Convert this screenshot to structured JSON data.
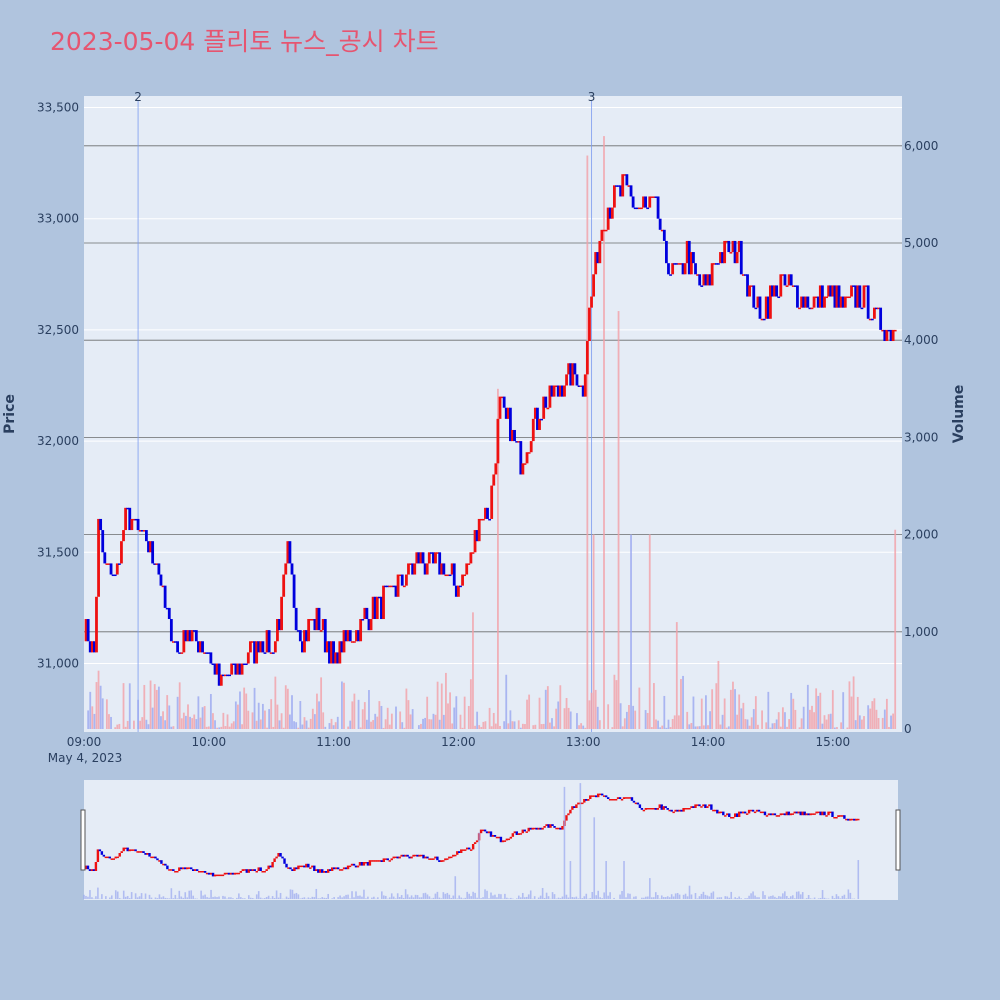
{
  "chart_data": {
    "type": "candlestick",
    "title": "2023-05-04 플리토 뉴스_공시 차트",
    "date_label": "May 4, 2023",
    "ylabel": "Price",
    "y2label": "Volume",
    "price_range": [
      30700,
      33550
    ],
    "volume_range": [
      0,
      6500
    ],
    "price_ticks": [
      31000,
      31500,
      32000,
      32500,
      33000,
      33500
    ],
    "price_tick_labels": [
      "31,000",
      "31,500",
      "32,000",
      "32,500",
      "33,000",
      "33,500"
    ],
    "volume_ticks": [
      0,
      1000,
      2000,
      3000,
      4000,
      5000,
      6000
    ],
    "volume_tick_labels": [
      "0",
      "1,000",
      "2,000",
      "3,000",
      "4,000",
      "5,000",
      "6,000"
    ],
    "time_ticks": [
      "09:00",
      "10:00",
      "11:00",
      "12:00",
      "13:00",
      "14:00",
      "15:00"
    ],
    "news_markers": [
      {
        "label": "2",
        "time": "09:26"
      },
      {
        "label": "3",
        "time": "13:04"
      }
    ],
    "anchors": [
      [
        "09:00",
        31150
      ],
      [
        "09:05",
        31050
      ],
      [
        "09:07",
        31600
      ],
      [
        "09:10",
        31450
      ],
      [
        "09:15",
        31400
      ],
      [
        "09:20",
        31650
      ],
      [
        "09:26",
        31600
      ],
      [
        "09:30",
        31550
      ],
      [
        "09:35",
        31450
      ],
      [
        "09:40",
        31200
      ],
      [
        "09:45",
        31050
      ],
      [
        "09:50",
        31150
      ],
      [
        "09:55",
        31100
      ],
      [
        "10:00",
        31050
      ],
      [
        "10:05",
        30900
      ],
      [
        "10:10",
        30950
      ],
      [
        "10:20",
        31050
      ],
      [
        "10:25",
        31100
      ],
      [
        "10:30",
        31050
      ],
      [
        "10:35",
        31250
      ],
      [
        "10:38",
        31500
      ],
      [
        "10:42",
        31200
      ],
      [
        "10:45",
        31100
      ],
      [
        "10:50",
        31200
      ],
      [
        "10:55",
        31150
      ],
      [
        "11:00",
        31000
      ],
      [
        "11:05",
        31100
      ],
      [
        "11:10",
        31150
      ],
      [
        "11:15",
        31200
      ],
      [
        "11:20",
        31250
      ],
      [
        "11:25",
        31300
      ],
      [
        "11:30",
        31350
      ],
      [
        "11:35",
        31400
      ],
      [
        "11:40",
        31450
      ],
      [
        "11:50",
        31450
      ],
      [
        "12:00",
        31350
      ],
      [
        "12:05",
        31450
      ],
      [
        "12:10",
        31650
      ],
      [
        "12:15",
        31700
      ],
      [
        "12:20",
        32150
      ],
      [
        "12:25",
        32050
      ],
      [
        "12:30",
        31900
      ],
      [
        "12:35",
        32050
      ],
      [
        "12:40",
        32150
      ],
      [
        "12:45",
        32200
      ],
      [
        "12:50",
        32250
      ],
      [
        "12:55",
        32300
      ],
      [
        "13:00",
        32250
      ],
      [
        "13:03",
        32600
      ],
      [
        "13:06",
        32800
      ],
      [
        "13:10",
        33000
      ],
      [
        "13:15",
        33100
      ],
      [
        "13:20",
        33150
      ],
      [
        "13:25",
        33050
      ],
      [
        "13:30",
        33050
      ],
      [
        "13:35",
        33050
      ],
      [
        "13:40",
        32800
      ],
      [
        "13:45",
        32750
      ],
      [
        "13:50",
        32850
      ],
      [
        "13:55",
        32700
      ],
      [
        "14:00",
        32700
      ],
      [
        "14:05",
        32850
      ],
      [
        "14:10",
        32850
      ],
      [
        "14:15",
        32850
      ],
      [
        "14:20",
        32700
      ],
      [
        "14:25",
        32550
      ],
      [
        "14:30",
        32650
      ],
      [
        "14:35",
        32700
      ],
      [
        "14:40",
        32700
      ],
      [
        "14:45",
        32650
      ],
      [
        "14:50",
        32600
      ],
      [
        "14:55",
        32650
      ],
      [
        "15:00",
        32650
      ],
      [
        "15:05",
        32600
      ],
      [
        "15:10",
        32650
      ],
      [
        "15:15",
        32650
      ],
      [
        "15:20",
        32550
      ],
      [
        "15:30",
        32500
      ]
    ],
    "volume_spikes": [
      [
        "09:07",
        600
      ],
      [
        "09:26",
        300
      ],
      [
        "10:37",
        450
      ],
      [
        "12:07",
        1200
      ],
      [
        "12:19",
        3500
      ],
      [
        "13:02",
        5900
      ],
      [
        "13:05",
        2000
      ],
      [
        "13:10",
        6100
      ],
      [
        "13:17",
        4300
      ],
      [
        "13:23",
        2000
      ],
      [
        "13:32",
        2000
      ],
      [
        "13:45",
        1100
      ],
      [
        "14:05",
        700
      ],
      [
        "15:00",
        400
      ],
      [
        "15:30",
        2050
      ]
    ]
  }
}
